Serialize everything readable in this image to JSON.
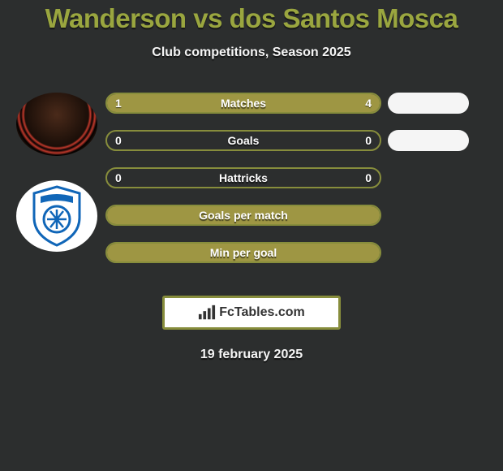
{
  "title": "Wanderson vs dos Santos Mosca",
  "subtitle": "Club competitions, Season 2025",
  "colors": {
    "bg": "#2c2e2e",
    "accent": "#9aa63f",
    "bar_border": "#878d3c",
    "bar_fill": "#9e9643",
    "pill_white": "#f5f5f5",
    "text_white": "#f5f5f5"
  },
  "bars": [
    {
      "label": "Matches",
      "left_val": "1",
      "right_val": "4",
      "left_pct": 20,
      "right_pct": 80,
      "show_pill": true
    },
    {
      "label": "Goals",
      "left_val": "0",
      "right_val": "0",
      "left_pct": 0,
      "right_pct": 0,
      "show_pill": true
    },
    {
      "label": "Hattricks",
      "left_val": "0",
      "right_val": "0",
      "left_pct": 0,
      "right_pct": 0,
      "show_pill": false
    },
    {
      "label": "Goals per match",
      "left_val": "",
      "right_val": "",
      "left_pct": 100,
      "right_pct": 0,
      "show_pill": false,
      "full": true
    },
    {
      "label": "Min per goal",
      "left_val": "",
      "right_val": "",
      "left_pct": 100,
      "right_pct": 0,
      "show_pill": false,
      "full": true
    }
  ],
  "logo_text": "FcTables.com",
  "date": "19 february 2025",
  "avatars": {
    "crest_primary": "#1066b8",
    "crest_bg": "#ffffff"
  }
}
